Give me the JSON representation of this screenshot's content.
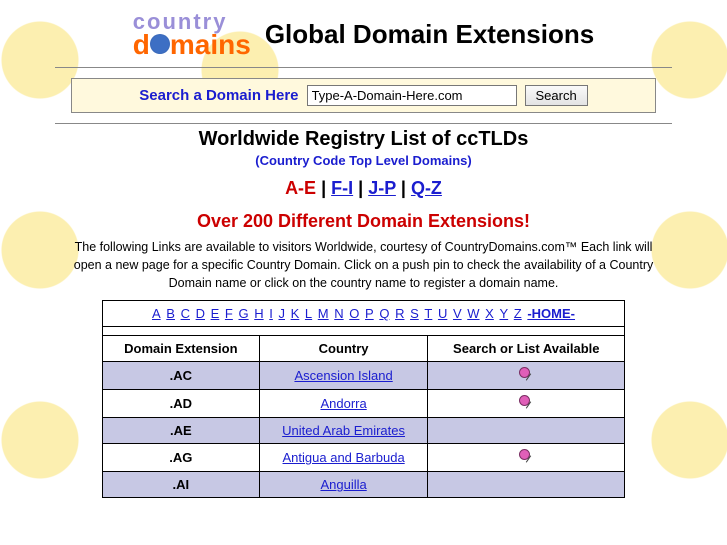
{
  "header": {
    "logo_top": "country",
    "logo_bottom_left": "d",
    "logo_bottom_right": "mains",
    "title": "Global Domain Extensions",
    "title_fontsize": 26
  },
  "search": {
    "label": "Search a Domain Here",
    "value": "Type-A-Domain-Here.com",
    "button": "Search"
  },
  "subtitle": {
    "line1": "Worldwide Registry List of ccTLDs",
    "line1_fontsize": 20,
    "line2": "(Country Code Top Level Domains)",
    "line2_fontsize": 13
  },
  "alphanav": {
    "active": "A-E",
    "links": [
      "F-I",
      "J-P",
      "Q-Z"
    ],
    "fontsize": 18
  },
  "redhead": {
    "text": "Over 200 Different Domain Extensions!",
    "fontsize": 18
  },
  "description": "The following Links are available to visitors Worldwide, courtesy of CountryDomains.com™ Each link will open a new page for a specific Country Domain. Click on a push pin to check the availability of a Country Domain name or click on the country name to register a domain name.",
  "letters_row": {
    "letters": [
      "A",
      "B",
      "C",
      "D",
      "E",
      "F",
      "G",
      "H",
      "I",
      "J",
      "K",
      "L",
      "M",
      "N",
      "O",
      "P",
      "Q",
      "R",
      "S",
      "T",
      "U",
      "V",
      "W",
      "X",
      "Y",
      "Z"
    ],
    "home": "-HOME-"
  },
  "table": {
    "headers": [
      "Domain Extension",
      "Country",
      "Search or List Available"
    ],
    "rows": [
      {
        "ext": ".AC",
        "country": "Ascension Island",
        "pin": true,
        "alt": true
      },
      {
        "ext": ".AD",
        "country": "Andorra",
        "pin": true,
        "alt": false
      },
      {
        "ext": ".AE",
        "country": "United Arab Emirates",
        "pin": false,
        "alt": true
      },
      {
        "ext": ".AG",
        "country": "Antigua and Barbuda",
        "pin": true,
        "alt": false
      },
      {
        "ext": ".AI",
        "country": "Anguilla",
        "pin": false,
        "alt": true
      }
    ]
  },
  "colors": {
    "link": "#1a1dcf",
    "red": "#cc0000",
    "alt_row": "#c7c8e4",
    "search_bg": "#fff9dd",
    "logo_top": "#9a8fd8",
    "logo_bottom": "#ff6600"
  }
}
